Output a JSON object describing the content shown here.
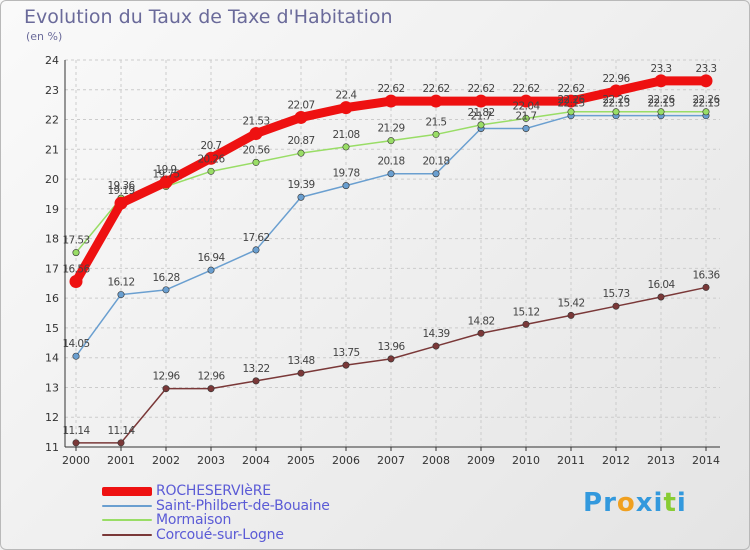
{
  "header": {
    "title": "Evolution du Taux de Taxe d'Habitation",
    "unit": "(en %)"
  },
  "colors": {
    "rocheserviere": "#ee1111",
    "saint_philbert": "#6a9fd0",
    "mormaison": "#99dd66",
    "corcoue": "#7a3838",
    "label_text": "#444444",
    "grid": "#cccccc"
  },
  "chart_data": {
    "type": "line",
    "x": [
      2000,
      2001,
      2002,
      2003,
      2004,
      2005,
      2006,
      2007,
      2008,
      2009,
      2010,
      2011,
      2012,
      2013,
      2014
    ],
    "ylim": [
      11,
      24
    ],
    "yticks": [
      11,
      12,
      13,
      14,
      15,
      16,
      17,
      18,
      19,
      20,
      21,
      22,
      23,
      24
    ],
    "grid": true,
    "legend_position": "bottom-left",
    "series": [
      {
        "name": "ROCHESERVIèRE",
        "key": "rocheserviere",
        "values": [
          16.56,
          19.19,
          19.9,
          20.7,
          21.53,
          22.07,
          22.4,
          22.62,
          22.62,
          22.62,
          22.62,
          22.62,
          22.96,
          23.3,
          23.3
        ]
      },
      {
        "name": "Saint-Philbert-de-Bouaine",
        "key": "saint_philbert",
        "values": [
          14.05,
          16.12,
          16.28,
          16.94,
          17.62,
          19.39,
          19.78,
          20.18,
          20.18,
          21.7,
          21.7,
          22.13,
          22.13,
          22.13,
          22.13
        ]
      },
      {
        "name": "Mormaison",
        "key": "mormaison",
        "values": [
          17.53,
          19.36,
          19.75,
          20.26,
          20.56,
          20.87,
          21.08,
          21.29,
          21.5,
          21.82,
          22.04,
          22.26,
          22.26,
          22.26,
          22.26
        ]
      },
      {
        "name": "Corcoué-sur-Logne",
        "key": "corcoue",
        "values": [
          11.14,
          11.14,
          12.96,
          12.96,
          13.22,
          13.48,
          13.75,
          13.96,
          14.39,
          14.82,
          15.12,
          15.42,
          15.73,
          16.04,
          16.36
        ]
      }
    ],
    "data_labels": [
      [
        "16.56",
        "19.19",
        "19.9",
        "20.7",
        "21.53",
        "22.07",
        "22.4",
        "22.62",
        "22.62",
        "22.62",
        "22.62",
        "22.62",
        "22.96",
        "23.3",
        "23.3"
      ],
      [
        "14.05",
        "16.12",
        "16.28",
        "16.94",
        "17.62",
        "19.39",
        "19.78",
        "20.18",
        "20.18",
        "21.7",
        "21.7",
        "22.13",
        "22.13",
        "22.13",
        "22.13"
      ],
      [
        "17.53",
        "19.36",
        "19.75",
        "20.26",
        "20.56",
        "20.87",
        "21.08",
        "21.29",
        "21.5",
        "21.82",
        "22.04",
        "22.26",
        "22.26",
        "22.26",
        "22.26"
      ],
      [
        "11.14",
        "11.14",
        "12.96",
        "12.96",
        "13.22",
        "13.48",
        "13.75",
        "13.96",
        "14.39",
        "14.82",
        "15.12",
        "15.42",
        "15.73",
        "16.04",
        "16.36"
      ]
    ]
  },
  "logo": {
    "letters": [
      "P",
      "r",
      "o",
      "x",
      "i",
      "t",
      "i"
    ],
    "colors": [
      "#3399dd",
      "#3399dd",
      "#f0a020",
      "#3399dd",
      "#3399dd",
      "#88cc33",
      "#3399dd"
    ]
  }
}
